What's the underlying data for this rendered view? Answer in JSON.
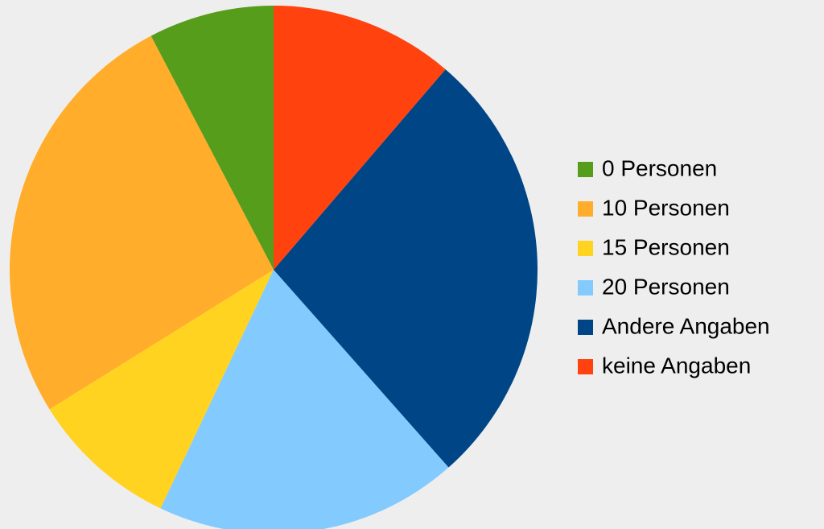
{
  "chart_data": {
    "type": "pie",
    "categories": [
      "0 Personen",
      "10 Personen",
      "15 Personen",
      "20 Personen",
      "Andere Angaben",
      "keine Angaben"
    ],
    "values": [
      7.7,
      26.2,
      9.1,
      18.6,
      27.2,
      11.3
    ],
    "colors": [
      "#579d1c",
      "#ffad2b",
      "#ffd320",
      "#83caff",
      "#004586",
      "#ff420e"
    ],
    "direction": "counterclockwise",
    "legend": "right"
  }
}
